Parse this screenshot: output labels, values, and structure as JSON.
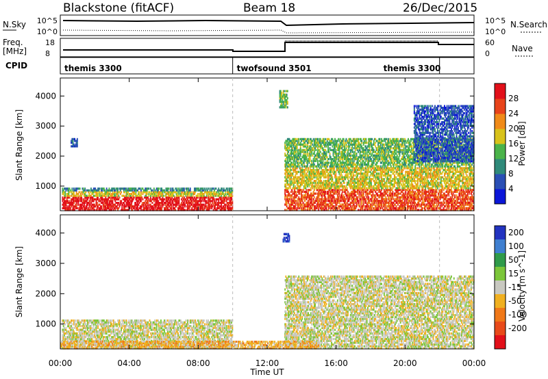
{
  "header": {
    "station": "Blackstone (fitACF)",
    "beam": "Beam 18",
    "date": "26/Dec/2015"
  },
  "nsky_panel": {
    "left_label": "N.Sky",
    "right_label": "N.Search",
    "left_ticks": [
      "10^5",
      "10^0"
    ],
    "right_ticks": [
      "10^5",
      "10^0"
    ]
  },
  "freq_panel": {
    "left_label_1": "Freq.",
    "left_label_2": "[MHz]",
    "right_label": "Nave",
    "left_ticks": [
      "18",
      "8"
    ],
    "right_ticks": [
      "60",
      "0"
    ]
  },
  "cpid_panel": {
    "label": "CPID",
    "modes": [
      {
        "name": "themis 3300",
        "start_h": 0,
        "end_h": 10
      },
      {
        "name": "twofsound 3501",
        "start_h": 10,
        "end_h": 22
      },
      {
        "name": "themis 3300",
        "start_h": 22,
        "end_h": 24
      }
    ]
  },
  "time_axis": {
    "label": "Time UT",
    "ticks": [
      "00:00",
      "04:00",
      "08:00",
      "12:00",
      "16:00",
      "20:00",
      "00:00"
    ],
    "range_h": [
      0,
      24
    ]
  },
  "chart_data": [
    {
      "type": "heatmap",
      "quantity": "Power",
      "ylabel": "Slant Range [km]",
      "yticks": [
        1000,
        2000,
        3000,
        4000
      ],
      "ylim": [
        180,
        4600
      ],
      "colorbar_label": "Power [dB]",
      "colorbar_ticks": [
        "4",
        "8",
        "12",
        "16",
        "20",
        "24",
        "28"
      ],
      "colors": [
        "#0b16d8",
        "#2a4fb5",
        "#2f8a7a",
        "#4ab34a",
        "#d8c21a",
        "#f08a18",
        "#e8431a",
        "#e2101a"
      ],
      "regions": [
        {
          "t0": 0.1,
          "t1": 10.0,
          "r0": 180,
          "r1": 950,
          "level": 5
        },
        {
          "t0": 0.6,
          "t1": 1.0,
          "r0": 2300,
          "r1": 2600,
          "level": 1
        },
        {
          "t0": 12.7,
          "t1": 13.2,
          "r0": 3600,
          "r1": 4200,
          "level": 3
        },
        {
          "t0": 13.0,
          "t1": 24.0,
          "r0": 180,
          "r1": 2600,
          "level": 4
        },
        {
          "t0": 20.5,
          "t1": 24.0,
          "r0": 1800,
          "r1": 3700,
          "level": 1
        }
      ]
    },
    {
      "type": "heatmap",
      "quantity": "Velocity",
      "ylabel": "Slant Range [km]",
      "yticks": [
        1000,
        2000,
        3000,
        4000
      ],
      "ylim": [
        180,
        4600
      ],
      "colorbar_label": "Velocity [m s^-1]",
      "colorbar_ticks": [
        "200",
        "100",
        "50",
        "15",
        "-15",
        "-50",
        "-100",
        "-200"
      ],
      "colors": [
        "#2233c0",
        "#3f7fd0",
        "#2f9a4a",
        "#7cc63a",
        "#c8c8c0",
        "#f0b020",
        "#f07818",
        "#e84a1a",
        "#e2101a"
      ],
      "regions": [
        {
          "t0": 0.1,
          "t1": 10.0,
          "r0": 180,
          "r1": 1150,
          "level": 4
        },
        {
          "t0": 12.9,
          "t1": 13.3,
          "r0": 3700,
          "r1": 4000,
          "level": 0
        },
        {
          "t0": 13.0,
          "t1": 24.0,
          "r0": 180,
          "r1": 2600,
          "level": 4
        },
        {
          "t0": 0.0,
          "t1": 15.0,
          "r0": 180,
          "r1": 450,
          "level": 5
        }
      ]
    }
  ]
}
